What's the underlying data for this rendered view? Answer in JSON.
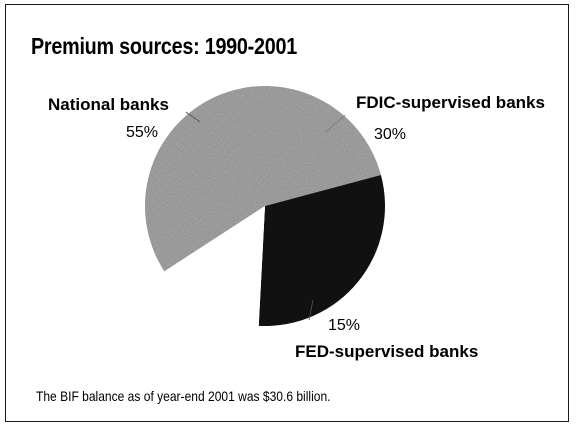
{
  "chart_data": {
    "type": "pie",
    "title": "Premium sources: 1990-2001",
    "slices": [
      {
        "label": "National banks",
        "percent_label": "55%",
        "value": 55,
        "color": "#8f8f8f"
      },
      {
        "label": "FDIC-supervised banks",
        "percent_label": "30%",
        "value": 30,
        "color": "#111111"
      },
      {
        "label": "FED-supervised banks",
        "percent_label": "15%",
        "value": 15,
        "color": "#ffffff"
      }
    ]
  },
  "footnote": "The BIF balance as of year-end 2001 was $30.6 billion."
}
